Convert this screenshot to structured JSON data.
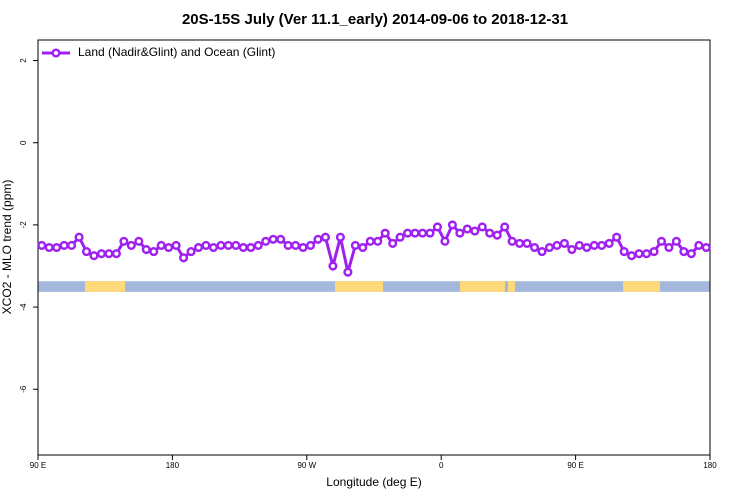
{
  "chart_data": {
    "type": "line",
    "title": "20S-15S July (Ver 11.1_early)   2014-09-06 to 2018-12-31",
    "xlabel": "Longitude (deg E)",
    "ylabel": "XCO2 - MLO trend (ppm)",
    "xlim": [
      90,
      540
    ],
    "ylim": [
      -7.6,
      2.5
    ],
    "xticks": [
      {
        "value": 90,
        "label": "90 E"
      },
      180,
      {
        "value": 270,
        "label": "90 W"
      },
      {
        "value": 360,
        "label": "0"
      },
      {
        "value": 450,
        "label": "90 E"
      },
      {
        "value": 540,
        "label": "180"
      }
    ],
    "yticks": [
      2,
      0,
      -2,
      -4,
      -6
    ],
    "legend": "top-left",
    "x": [
      92.5,
      97.5,
      102.5,
      107.5,
      112.5,
      117.5,
      122.5,
      127.5,
      132.5,
      137.5,
      142.5,
      147.5,
      152.5,
      157.5,
      162.5,
      167.5,
      172.5,
      177.5,
      182.5,
      187.5,
      192.5,
      197.5,
      202.5,
      207.5,
      212.5,
      217.5,
      222.5,
      227.5,
      232.5,
      237.5,
      242.5,
      247.5,
      252.5,
      257.5,
      262.5,
      267.5,
      272.5,
      277.5,
      282.5,
      287.5,
      292.5,
      297.5,
      302.5,
      307.5,
      312.5,
      317.5,
      322.5,
      327.5,
      332.5,
      337.5,
      342.5,
      347.5,
      352.5,
      357.5,
      362.5,
      367.5,
      372.5,
      377.5,
      382.5,
      387.5,
      392.5,
      397.5,
      402.5,
      407.5,
      412.5,
      417.5,
      422.5,
      427.5,
      432.5,
      437.5,
      442.5,
      447.5,
      452.5,
      457.5,
      462.5,
      467.5,
      472.5,
      477.5,
      482.5,
      487.5,
      492.5,
      497.5,
      502.5,
      507.5,
      512.5,
      517.5,
      522.5,
      527.5,
      532.5,
      537.5
    ],
    "series": [
      {
        "name": "Land (Nadir&Glint) and Ocean (Glint)",
        "color": "#a020f0",
        "values": [
          -2.5,
          -2.55,
          -2.55,
          -2.5,
          -2.5,
          -2.3,
          -2.65,
          -2.75,
          -2.7,
          -2.7,
          -2.7,
          -2.4,
          -2.5,
          -2.4,
          -2.6,
          -2.65,
          -2.5,
          -2.55,
          -2.5,
          -2.8,
          -2.65,
          -2.55,
          -2.5,
          -2.55,
          -2.5,
          -2.5,
          -2.5,
          -2.55,
          -2.55,
          -2.5,
          -2.4,
          -2.35,
          -2.35,
          -2.5,
          -2.5,
          -2.55,
          -2.5,
          -2.35,
          -2.3,
          -3.0,
          -2.3,
          -3.15,
          -2.5,
          -2.55,
          -2.4,
          -2.4,
          -2.2,
          -2.45,
          -2.3,
          -2.2,
          -2.2,
          -2.2,
          -2.2,
          -2.05,
          -2.4,
          -2.0,
          -2.2,
          -2.1,
          -2.15,
          -2.05,
          -2.2,
          -2.25,
          -2.05,
          -2.4,
          -2.45,
          -2.45,
          -2.55,
          -2.65,
          -2.55,
          -2.5,
          -2.45,
          -2.6,
          -2.5,
          -2.55,
          -2.5,
          -2.5,
          -2.45,
          -2.3,
          -2.65,
          -2.75,
          -2.7,
          -2.7,
          -2.65,
          -2.4,
          -2.55,
          -2.4,
          -2.65,
          -2.7,
          -2.5,
          -2.55
        ]
      }
    ],
    "surface_strip": {
      "ylim": [
        -3.63,
        -3.37
      ],
      "ocean_color": "#a3b8dc",
      "land_color": "#ffd97a",
      "land_ranges": [
        [
          121.5,
          148.3
        ],
        [
          288.9,
          321
        ],
        [
          372.6,
          402.7
        ],
        [
          404.7,
          409.4
        ],
        [
          481.8,
          506.5
        ]
      ]
    }
  }
}
